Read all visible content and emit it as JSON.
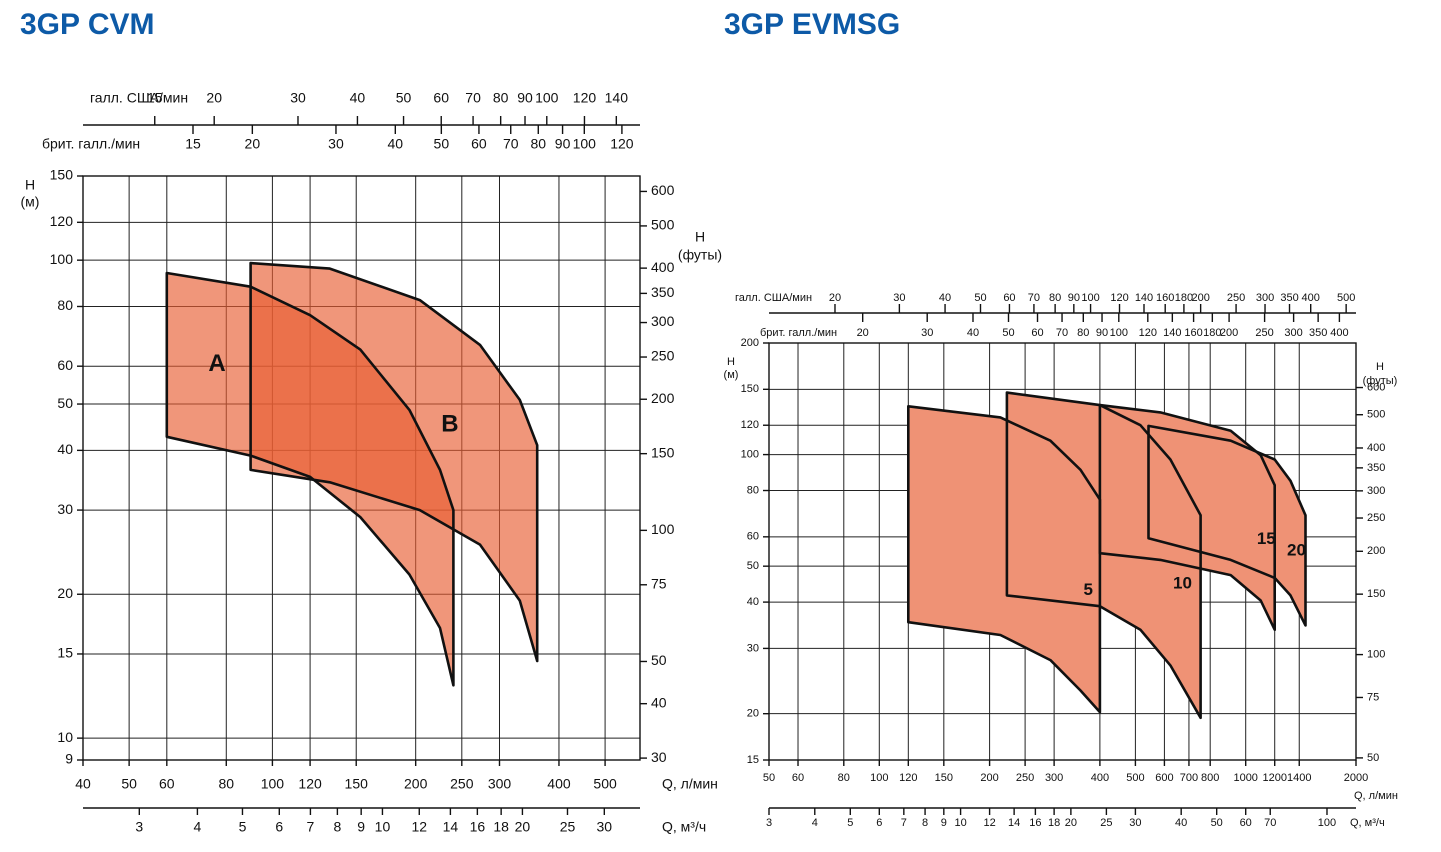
{
  "chart_data": [
    {
      "type": "area",
      "title": "3GP CVM",
      "fill_mode": "translucent",
      "log_x": true,
      "log_y": true,
      "grid": true,
      "xlabel": "Q, л/мин",
      "ylabel": [
        "H",
        "(м)"
      ],
      "y2label": [
        "H",
        "(футы)"
      ],
      "xlim": [
        40,
        592
      ],
      "xticks": [
        40,
        50,
        60,
        80,
        100,
        120,
        150,
        200,
        250,
        300,
        400,
        500
      ],
      "ylim": [
        9,
        150
      ],
      "yticks": [
        9,
        10,
        15,
        20,
        30,
        40,
        50,
        60,
        80,
        100,
        120,
        150
      ],
      "y2lim": [
        29.7,
        651
      ],
      "y2ticks": [
        30,
        40,
        50,
        75,
        100,
        150,
        200,
        250,
        300,
        350,
        400,
        500,
        600
      ],
      "top_axes": [
        {
          "label": "галл. США/мин",
          "lim": [
            10.6,
            157
          ],
          "ticks": [
            15,
            20,
            30,
            40,
            50,
            60,
            70,
            80,
            90,
            100,
            120,
            140
          ]
        },
        {
          "label": "брит. галл./мин",
          "lim": [
            8.8,
            131
          ],
          "ticks": [
            15,
            20,
            30,
            40,
            50,
            60,
            70,
            80,
            90,
            100,
            120
          ]
        }
      ],
      "bottom_axis": {
        "label": "Q, м³/ч",
        "lim": [
          2.27,
          35.8
        ],
        "ticks": [
          3,
          4,
          5,
          6,
          7,
          8,
          9,
          10,
          12,
          14,
          16,
          18,
          20,
          25,
          30
        ]
      },
      "series": [
        {
          "name": "A",
          "color": "#e85d32",
          "x": [
            60,
            90,
            120,
            153,
            194,
            225,
            240
          ],
          "upper": [
            94,
            88,
            76.7,
            65,
            48.6,
            36.4,
            30
          ],
          "lower": [
            42.7,
            39,
            35.2,
            29,
            22,
            17,
            12.9
          ]
        },
        {
          "name": "B",
          "color": "#e85d32",
          "x": [
            90,
            132,
            204,
            273,
            331,
            360
          ],
          "upper": [
            98.6,
            96,
            82.5,
            66.5,
            51,
            41
          ],
          "lower": [
            36.4,
            34.3,
            30,
            25.4,
            19.4,
            14.5
          ]
        }
      ]
    },
    {
      "type": "area",
      "title": "3GP EVMSG",
      "fill_mode": "solid",
      "log_x": true,
      "log_y": true,
      "grid": true,
      "xlabel": "Q, л/мин",
      "ylabel": [
        "H",
        "(м)"
      ],
      "y2label": [
        "H",
        "(футы)"
      ],
      "xlim": [
        50,
        2000
      ],
      "xticks": [
        50,
        60,
        80,
        100,
        120,
        150,
        200,
        250,
        300,
        400,
        500,
        600,
        700,
        800,
        1000,
        1200,
        1400,
        2000
      ],
      "ylim": [
        15,
        200
      ],
      "yticks": [
        15,
        20,
        30,
        40,
        50,
        60,
        80,
        100,
        120,
        150,
        200
      ],
      "y2lim": [
        49.3,
        809
      ],
      "y2ticks": [
        50,
        75,
        100,
        150,
        200,
        250,
        300,
        350,
        400,
        500,
        600
      ],
      "top_axes": [
        {
          "label": "галл. США/мин",
          "lim": [
            13.2,
            532
          ],
          "ticks": [
            20,
            30,
            40,
            50,
            60,
            70,
            80,
            90,
            100,
            120,
            140,
            160,
            180,
            200,
            250,
            300,
            350,
            400,
            500
          ]
        },
        {
          "label": "брит. галл./мин",
          "lim": [
            11.1,
            444
          ],
          "ticks": [
            20,
            30,
            40,
            50,
            60,
            70,
            80,
            90,
            100,
            120,
            140,
            160,
            180,
            200,
            250,
            300,
            350,
            400
          ]
        }
      ],
      "bottom_axis": {
        "label": "Q, м³/ч",
        "lim": [
          3,
          120
        ],
        "ticks": [
          3,
          4,
          5,
          6,
          7,
          8,
          9,
          10,
          12,
          14,
          16,
          18,
          20,
          25,
          30,
          40,
          50,
          60,
          70,
          100
        ]
      },
      "series": [
        {
          "name": "5",
          "color": "#ef9275",
          "x": [
            120,
            214,
            293,
            354,
            400
          ],
          "upper": [
            135,
            126,
            109,
            91,
            75.6
          ],
          "lower": [
            35.3,
            32.6,
            27.9,
            23.1,
            20.2
          ]
        },
        {
          "name": "10",
          "color": "#ef9275",
          "x": [
            223,
            400,
            516,
            623,
            753
          ],
          "upper": [
            147,
            136,
            120,
            97,
            68.6
          ],
          "lower": [
            41.7,
            39,
            33.7,
            27,
            19.5
          ]
        },
        {
          "name": "15",
          "color": "#ef9275",
          "x": [
            400,
            585,
            910,
            1099,
            1200
          ],
          "upper": [
            136,
            130,
            116,
            99.6,
            82.7
          ],
          "lower": [
            54.2,
            52,
            47.3,
            40.4,
            33.7
          ]
        },
        {
          "name": "20",
          "color": "#ef9275",
          "x": [
            543,
            910,
            1200,
            1325,
            1456
          ],
          "upper": [
            119.5,
            109,
            97,
            85,
            68.6
          ],
          "lower": [
            59.5,
            52,
            46.5,
            41.7,
            34.6
          ]
        }
      ]
    }
  ]
}
